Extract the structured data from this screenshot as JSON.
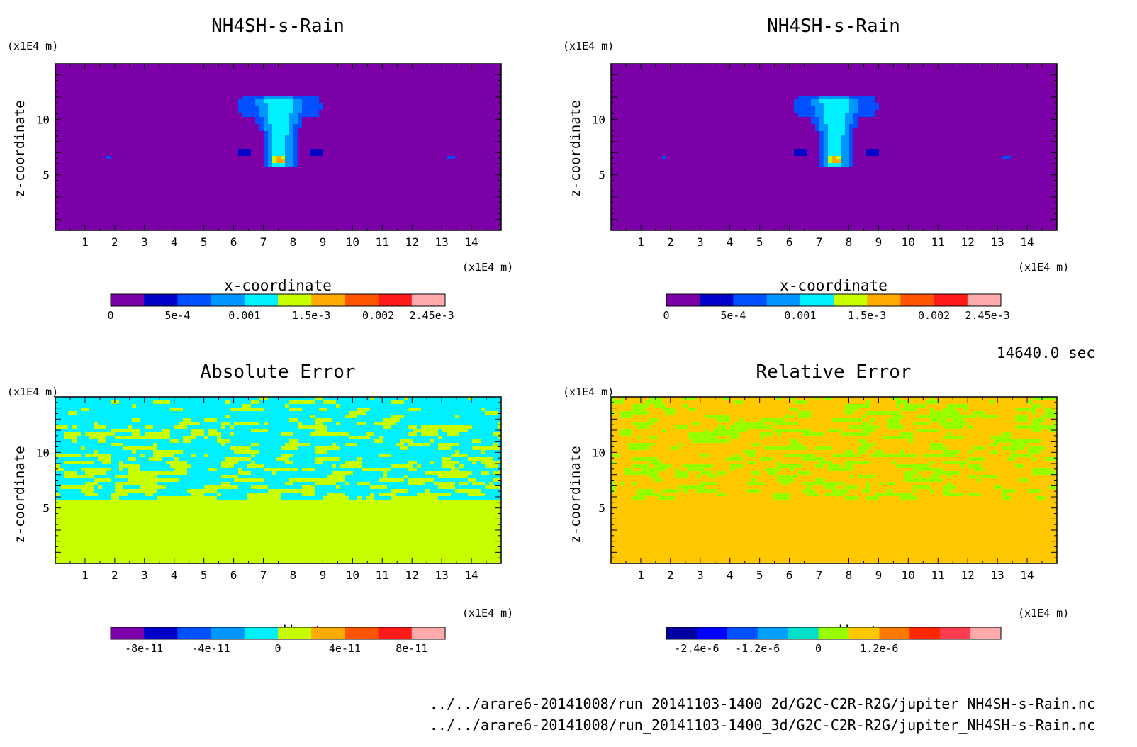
{
  "chart_data": [
    {
      "type": "heatmap",
      "title": "NH4SH-s-Rain",
      "xlabel": "x-coordinate",
      "ylabel": "z-coordinate",
      "x_unit": "(x1E4 m)",
      "y_unit": "(x1E4 m)",
      "xlim": [
        0,
        15
      ],
      "ylim": [
        0,
        15
      ],
      "x_ticks": [
        "1",
        "2",
        "3",
        "4",
        "5",
        "6",
        "7",
        "8",
        "9",
        "10",
        "11",
        "12",
        "13",
        "14"
      ],
      "y_ticks": [
        "5",
        "10"
      ],
      "colorbar": {
        "colors": [
          "#7b00a8",
          "#0000c8",
          "#0050ff",
          "#0096ff",
          "#00f0ff",
          "#c8ff00",
          "#ffaa00",
          "#ff5500",
          "#ff1a1a",
          "#ffaaaa"
        ],
        "tick_labels": [
          "0",
          "5e-4",
          "0.001",
          "1.5e-3",
          "0.002",
          "2.45e-3"
        ]
      },
      "field": "plume"
    },
    {
      "type": "heatmap",
      "title": "NH4SH-s-Rain",
      "xlabel": "x-coordinate",
      "ylabel": "z-coordinate",
      "x_unit": "(x1E4 m)",
      "y_unit": "(x1E4 m)",
      "xlim": [
        0,
        15
      ],
      "ylim": [
        0,
        15
      ],
      "x_ticks": [
        "1",
        "2",
        "3",
        "4",
        "5",
        "6",
        "7",
        "8",
        "9",
        "10",
        "11",
        "12",
        "13",
        "14"
      ],
      "y_ticks": [
        "5",
        "10"
      ],
      "colorbar": {
        "colors": [
          "#7b00a8",
          "#0000c8",
          "#0050ff",
          "#0096ff",
          "#00f0ff",
          "#c8ff00",
          "#ffaa00",
          "#ff5500",
          "#ff1a1a",
          "#ffaaaa"
        ],
        "tick_labels": [
          "0",
          "5e-4",
          "0.001",
          "1.5e-3",
          "0.002",
          "2.45e-3"
        ]
      },
      "field": "plume"
    },
    {
      "type": "heatmap",
      "title": "Absolute Error",
      "xlabel": "x-coordinate",
      "ylabel": "z-coordinate",
      "x_unit": "(x1E4 m)",
      "y_unit": "(x1E4 m)",
      "xlim": [
        0,
        15
      ],
      "ylim": [
        0,
        15
      ],
      "x_ticks": [
        "1",
        "2",
        "3",
        "4",
        "5",
        "6",
        "7",
        "8",
        "9",
        "10",
        "11",
        "12",
        "13",
        "14"
      ],
      "y_ticks": [
        "5",
        "10"
      ],
      "colorbar": {
        "colors": [
          "#7b00a8",
          "#0000c8",
          "#0050ff",
          "#0096ff",
          "#00f0ff",
          "#c8ff00",
          "#ffaa00",
          "#ff5500",
          "#ff1a1a",
          "#ffaaaa"
        ],
        "tick_labels": [
          "-8e-11",
          "-4e-11",
          "0",
          "4e-11",
          "8e-11"
        ]
      },
      "field": "abs_error"
    },
    {
      "type": "heatmap",
      "title": "Relative Error",
      "xlabel": "x-coordinate",
      "ylabel": "z-coordinate",
      "x_unit": "(x1E4 m)",
      "y_unit": "(x1E4 m)",
      "xlim": [
        0,
        15
      ],
      "ylim": [
        0,
        15
      ],
      "x_ticks": [
        "1",
        "2",
        "3",
        "4",
        "5",
        "6",
        "7",
        "8",
        "9",
        "10",
        "11",
        "12",
        "13",
        "14"
      ],
      "y_ticks": [
        "5",
        "10"
      ],
      "colorbar": {
        "colors": [
          "#0000a0",
          "#0000ff",
          "#0050ff",
          "#00a0ff",
          "#00e0c8",
          "#96ff00",
          "#ffc800",
          "#ff7800",
          "#ff2800",
          "#ff3c50",
          "#ffaaaa"
        ],
        "tick_labels": [
          "-2.4e-6",
          "-1.2e-6",
          "0",
          "1.2e-6"
        ]
      },
      "field": "rel_error"
    }
  ],
  "time_label": "14640.0 sec",
  "file_paths": [
    "../../arare6-20141008/run_20141103-1400_2d/G2C-C2R-R2G/jupiter_NH4SH-s-Rain.nc",
    "../../arare6-20141008/run_20141103-1400_3d/G2C-C2R-R2G/jupiter_NH4SH-s-Rain.nc"
  ]
}
